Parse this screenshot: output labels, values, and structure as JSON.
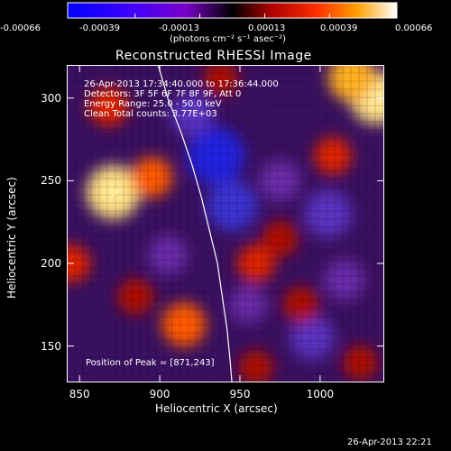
{
  "colorbar": {
    "ticks": [
      "-0.00066",
      "-0.00039",
      "-0.00013",
      "0.00013",
      "0.00039",
      "0.00066"
    ],
    "unit_label": "(photons cm⁻² s⁻¹ asec⁻²)"
  },
  "info_lines": [
    "26-Apr-2013 17:34:40.000 to 17:36:44.000",
    "Detectors: 3F 5F 6F 7F 8F 9F, Att 0",
    "Energy Range: 25.0 - 50.0 keV",
    "Clean    Total counts: 3.77E+03"
  ],
  "peak_label": "Position of Peak = [871,243]",
  "footer_timestamp": "26-Apr-2013 22:21",
  "chart_data": {
    "type": "heatmap",
    "title": "Reconstructed RHESSI Image",
    "xlabel": "Heliocentric X (arcsec)",
    "ylabel": "Heliocentric Y (arcsec)",
    "xlim": [
      842,
      1040
    ],
    "ylim": [
      128,
      320
    ],
    "x_ticks": [
      850,
      900,
      950,
      1000
    ],
    "y_ticks": [
      150,
      200,
      250,
      300
    ],
    "color_scale": {
      "min": -0.00066,
      "max": 0.00066,
      "colormap": "blue-purple-red-yellow-white",
      "unit": "photons cm^-2 s^-1 asec^-2"
    },
    "peak_position": [
      871,
      243
    ],
    "limb_line": [
      [
        899,
        320
      ],
      [
        905,
        300
      ],
      [
        913,
        280
      ],
      [
        920,
        260
      ],
      [
        926,
        240
      ],
      [
        931,
        220
      ],
      [
        936,
        200
      ],
      [
        939,
        180
      ],
      [
        942,
        160
      ],
      [
        944,
        140
      ],
      [
        945,
        128
      ]
    ],
    "bright_sources": [
      {
        "x": 871,
        "y": 243,
        "level": 1.0
      },
      {
        "x": 1035,
        "y": 300,
        "level": 0.95
      },
      {
        "x": 1020,
        "y": 312,
        "level": 0.8
      },
      {
        "x": 915,
        "y": 163,
        "level": 0.7
      },
      {
        "x": 895,
        "y": 252,
        "level": 0.6
      },
      {
        "x": 868,
        "y": 295,
        "level": 0.55
      },
      {
        "x": 960,
        "y": 200,
        "level": 0.5
      },
      {
        "x": 1008,
        "y": 265,
        "level": 0.5
      },
      {
        "x": 975,
        "y": 215,
        "level": 0.45
      },
      {
        "x": 988,
        "y": 175,
        "level": 0.45
      },
      {
        "x": 845,
        "y": 200,
        "level": 0.5
      },
      {
        "x": 938,
        "y": 312,
        "level": 0.4
      },
      {
        "x": 1025,
        "y": 140,
        "level": 0.4
      },
      {
        "x": 960,
        "y": 137,
        "level": 0.4
      },
      {
        "x": 885,
        "y": 180,
        "level": 0.45
      }
    ],
    "dark_sources": [
      {
        "x": 935,
        "y": 265,
        "level": -1.0
      },
      {
        "x": 945,
        "y": 235,
        "level": -0.8
      },
      {
        "x": 1005,
        "y": 230,
        "level": -0.7
      },
      {
        "x": 995,
        "y": 155,
        "level": -0.6
      },
      {
        "x": 920,
        "y": 290,
        "level": -0.55
      },
      {
        "x": 975,
        "y": 250,
        "level": -0.5
      },
      {
        "x": 1015,
        "y": 190,
        "level": -0.5
      },
      {
        "x": 905,
        "y": 205,
        "level": -0.45
      },
      {
        "x": 955,
        "y": 175,
        "level": -0.4
      }
    ]
  }
}
